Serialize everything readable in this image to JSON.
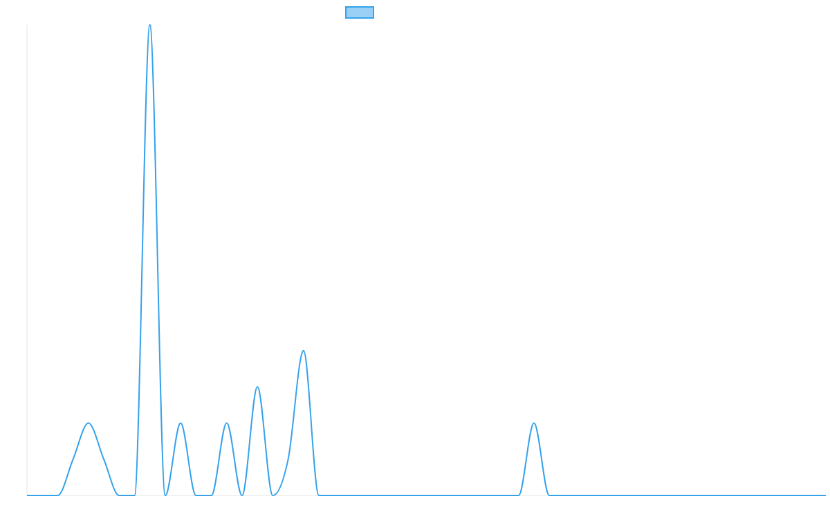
{
  "colors": {
    "series_stroke": "#36a2eb",
    "series_fill": "#9ad0f5",
    "axis_line": "#e5e5e5",
    "background": "#ffffff"
  },
  "legend": {
    "placement": "top-center",
    "label": ""
  },
  "chart_data": {
    "type": "line",
    "title": "",
    "xlabel": "",
    "ylabel": "",
    "grid": false,
    "tick_labels_shown": false,
    "xlim": [
      0,
      52
    ],
    "ylim": [
      0,
      13
    ],
    "series": [
      {
        "values": [
          [
            0,
            0
          ],
          [
            1,
            0
          ],
          [
            2,
            0
          ],
          [
            3,
            1
          ],
          [
            4,
            2
          ],
          [
            5,
            1
          ],
          [
            6,
            0
          ],
          [
            7,
            0
          ],
          [
            8,
            13
          ],
          [
            9,
            0
          ],
          [
            10,
            2
          ],
          [
            11,
            0
          ],
          [
            12,
            0
          ],
          [
            13,
            2
          ],
          [
            14,
            0
          ],
          [
            15,
            3
          ],
          [
            16,
            0
          ],
          [
            17,
            1
          ],
          [
            18,
            4
          ],
          [
            19,
            0
          ],
          [
            20,
            0
          ],
          [
            21,
            0
          ],
          [
            22,
            0
          ],
          [
            23,
            0
          ],
          [
            24,
            0
          ],
          [
            25,
            0
          ],
          [
            26,
            0
          ],
          [
            27,
            0
          ],
          [
            28,
            0
          ],
          [
            29,
            0
          ],
          [
            30,
            0
          ],
          [
            31,
            0
          ],
          [
            32,
            0
          ],
          [
            33,
            2
          ],
          [
            34,
            0
          ],
          [
            35,
            0
          ],
          [
            36,
            0
          ],
          [
            37,
            0
          ],
          [
            38,
            0
          ],
          [
            39,
            0
          ],
          [
            40,
            0
          ],
          [
            41,
            0
          ],
          [
            42,
            0
          ],
          [
            43,
            0
          ],
          [
            44,
            0
          ],
          [
            45,
            0
          ],
          [
            46,
            0
          ],
          [
            47,
            0
          ],
          [
            48,
            0
          ],
          [
            49,
            0
          ],
          [
            50,
            0
          ],
          [
            51,
            0
          ],
          [
            52,
            0
          ]
        ]
      }
    ]
  }
}
